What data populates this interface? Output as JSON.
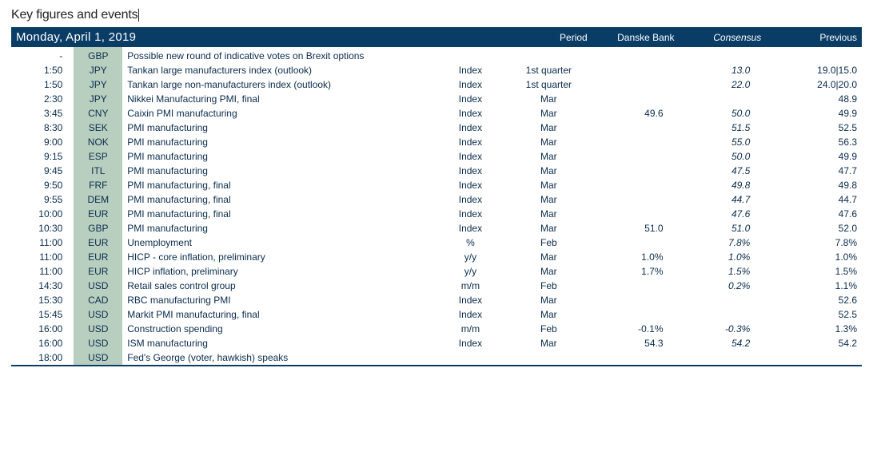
{
  "title": "Key figures and events",
  "header": {
    "date": "Monday, April 1, 2019",
    "period": "Period",
    "danske": "Danske Bank",
    "consensus": "Consensus",
    "previous": "Previous"
  },
  "colors": {
    "header_bg": "#0a3d66",
    "header_fg": "#ffffff",
    "ccy_bg": "#b8cfc0",
    "text": "#0a2c4d"
  },
  "rows": [
    {
      "time": "-",
      "ccy": "GBP",
      "event": "Possible new round of indicative votes on Brexit options",
      "unit": "",
      "period": "",
      "db": "",
      "cons": "",
      "prev": ""
    },
    {
      "time": "1:50",
      "ccy": "JPY",
      "event": "Tankan large manufacturers index (outlook)",
      "unit": "Index",
      "period": "1st quarter",
      "db": "",
      "cons": "13.0",
      "prev": "19.0|15.0"
    },
    {
      "time": "1:50",
      "ccy": "JPY",
      "event": "Tankan large non-manufacturers index (outlook)",
      "unit": "Index",
      "period": "1st quarter",
      "db": "",
      "cons": "22.0",
      "prev": "24.0|20.0"
    },
    {
      "time": "2:30",
      "ccy": "JPY",
      "event": "Nikkei Manufacturing PMI, final",
      "unit": "Index",
      "period": "Mar",
      "db": "",
      "cons": "",
      "prev": "48.9"
    },
    {
      "time": "3:45",
      "ccy": "CNY",
      "event": "Caixin PMI manufacturing",
      "unit": "Index",
      "period": "Mar",
      "db": "49.6",
      "cons": "50.0",
      "prev": "49.9"
    },
    {
      "time": "8:30",
      "ccy": "SEK",
      "event": "PMI manufacturing",
      "unit": "Index",
      "period": "Mar",
      "db": "",
      "cons": "51.5",
      "prev": "52.5"
    },
    {
      "time": "9:00",
      "ccy": "NOK",
      "event": "PMI manufacturing",
      "unit": "Index",
      "period": "Mar",
      "db": "",
      "cons": "55.0",
      "prev": "56.3"
    },
    {
      "time": "9:15",
      "ccy": "ESP",
      "event": "PMI manufacturing",
      "unit": "Index",
      "period": "Mar",
      "db": "",
      "cons": "50.0",
      "prev": "49.9"
    },
    {
      "time": "9:45",
      "ccy": "ITL",
      "event": "PMI manufacturing",
      "unit": "Index",
      "period": "Mar",
      "db": "",
      "cons": "47.5",
      "prev": "47.7"
    },
    {
      "time": "9:50",
      "ccy": "FRF",
      "event": "PMI manufacturing, final",
      "unit": "Index",
      "period": "Mar",
      "db": "",
      "cons": "49.8",
      "prev": "49.8"
    },
    {
      "time": "9:55",
      "ccy": "DEM",
      "event": "PMI manufacturing, final",
      "unit": "Index",
      "period": "Mar",
      "db": "",
      "cons": "44.7",
      "prev": "44.7"
    },
    {
      "time": "10:00",
      "ccy": "EUR",
      "event": "PMI manufacturing, final",
      "unit": "Index",
      "period": "Mar",
      "db": "",
      "cons": "47.6",
      "prev": "47.6"
    },
    {
      "time": "10:30",
      "ccy": "GBP",
      "event": "PMI manufacturing",
      "unit": "Index",
      "period": "Mar",
      "db": "51.0",
      "cons": "51.0",
      "prev": "52.0"
    },
    {
      "time": "11:00",
      "ccy": "EUR",
      "event": "Unemployment",
      "unit": "%",
      "period": "Feb",
      "db": "",
      "cons": "7.8%",
      "prev": "7.8%"
    },
    {
      "time": "11:00",
      "ccy": "EUR",
      "event": "HICP - core inflation, preliminary",
      "unit": "y/y",
      "period": "Mar",
      "db": "1.0%",
      "cons": "1.0%",
      "prev": "1.0%"
    },
    {
      "time": "11:00",
      "ccy": "EUR",
      "event": "HICP inflation, preliminary",
      "unit": "y/y",
      "period": "Mar",
      "db": "1.7%",
      "cons": "1.5%",
      "prev": "1.5%"
    },
    {
      "time": "14:30",
      "ccy": "USD",
      "event": "Retail sales control group",
      "unit": "m/m",
      "period": "Feb",
      "db": "",
      "cons": "0.2%",
      "prev": "1.1%"
    },
    {
      "time": "15:30",
      "ccy": "CAD",
      "event": "RBC manufacturing PMI",
      "unit": "Index",
      "period": "Mar",
      "db": "",
      "cons": "",
      "prev": "52.6"
    },
    {
      "time": "15:45",
      "ccy": "USD",
      "event": "Markit PMI manufacturing, final",
      "unit": "Index",
      "period": "Mar",
      "db": "",
      "cons": "",
      "prev": "52.5"
    },
    {
      "time": "16:00",
      "ccy": "USD",
      "event": "Construction spending",
      "unit": "m/m",
      "period": "Feb",
      "db": "-0.1%",
      "cons": "-0.3%",
      "prev": "1.3%"
    },
    {
      "time": "16:00",
      "ccy": "USD",
      "event": "ISM manufacturing",
      "unit": "Index",
      "period": "Mar",
      "db": "54.3",
      "cons": "54.2",
      "prev": "54.2"
    },
    {
      "time": "18:00",
      "ccy": "USD",
      "event": "Fed's George (voter, hawkish) speaks",
      "unit": "",
      "period": "",
      "db": "",
      "cons": "",
      "prev": ""
    }
  ]
}
